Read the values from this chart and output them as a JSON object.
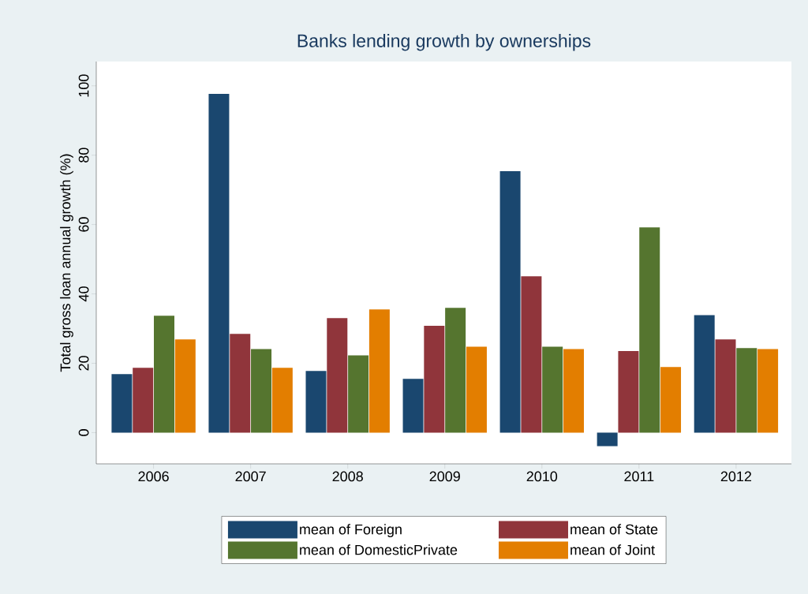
{
  "chart_data": {
    "type": "bar",
    "title": "Banks lending growth by ownerships",
    "ylabel": "Total gross loan annual growth (%)",
    "categories": [
      "2006",
      "2007",
      "2008",
      "2009",
      "2010",
      "2011",
      "2012"
    ],
    "series": [
      {
        "name": "mean of Foreign",
        "color": "#1a476f",
        "values": [
          16.9,
          97.7,
          17.8,
          15.5,
          75.4,
          -3.9,
          33.9
        ]
      },
      {
        "name": "mean of State",
        "color": "#90353b",
        "values": [
          18.7,
          28.5,
          33.0,
          30.8,
          45.1,
          23.5,
          26.9
        ]
      },
      {
        "name": "mean of DomesticPrivate",
        "color": "#55752f",
        "values": [
          33.7,
          24.1,
          22.3,
          36.0,
          24.8,
          59.2,
          24.4
        ]
      },
      {
        "name": "mean of Joint",
        "color": "#e37e00",
        "values": [
          26.9,
          18.7,
          35.5,
          24.8,
          24.1,
          18.9,
          24.1
        ]
      }
    ],
    "ylim": [
      -9,
      107
    ],
    "yticks": [
      0,
      20,
      40,
      60,
      80,
      100
    ],
    "legend": "bottom"
  }
}
